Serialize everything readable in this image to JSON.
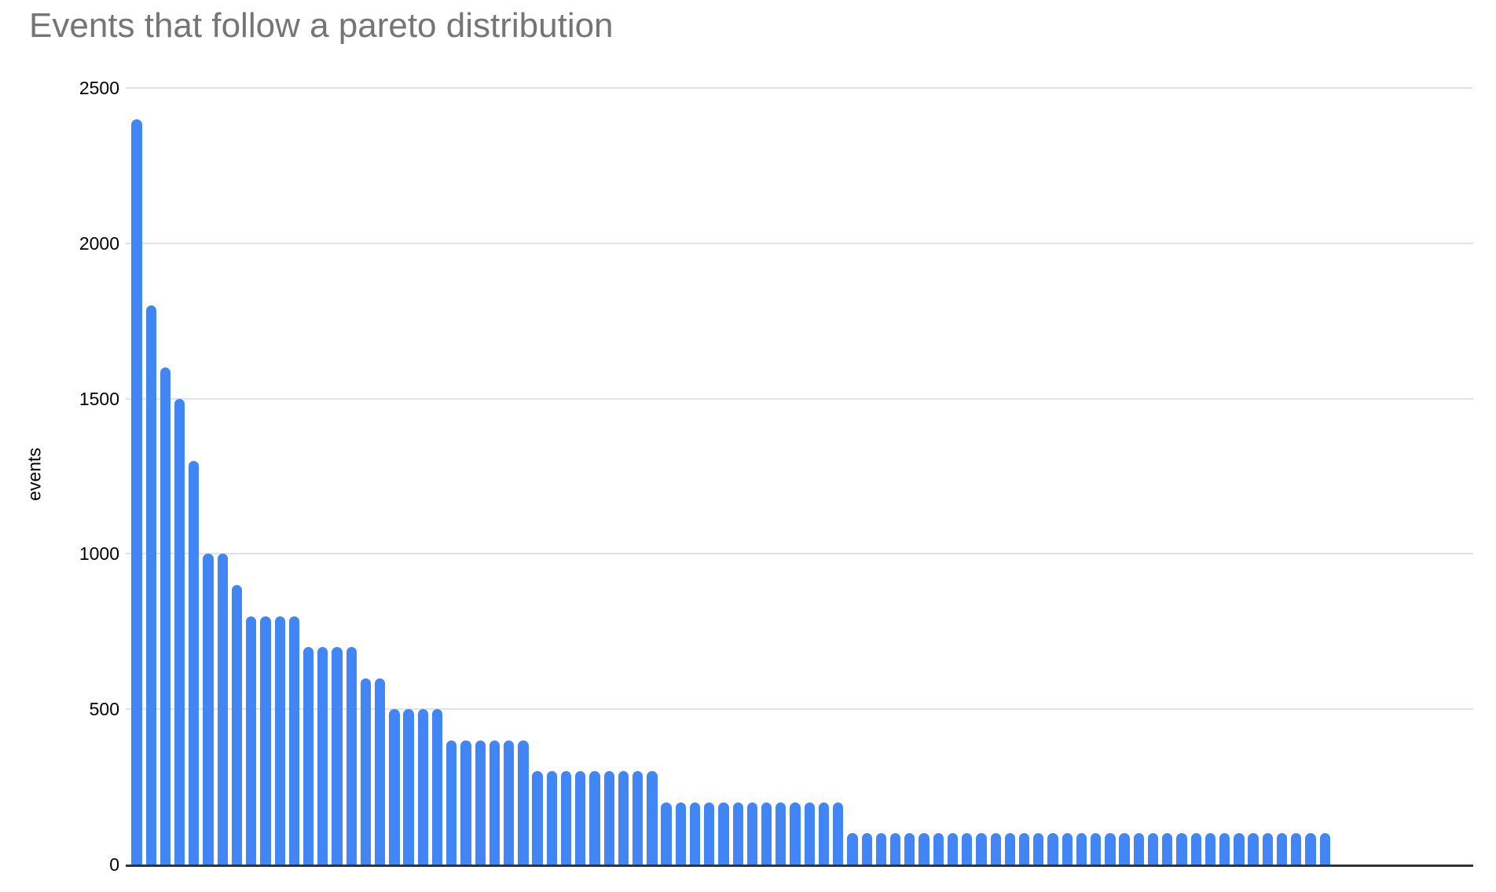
{
  "page": {
    "background": "#ffffff"
  },
  "style": {
    "bar_color": "#4285f4",
    "gridline_color": "#e2e2e2",
    "axis_line_color": "#333333",
    "title_color": "#757575",
    "tick_text_color": "#000000"
  },
  "chart_data": {
    "type": "bar",
    "title": "Events that follow a pareto distribution",
    "xlabel": "",
    "ylabel": "events",
    "ylim": [
      0,
      2500
    ],
    "yticks": [
      0,
      500,
      1000,
      1500,
      2000,
      2500
    ],
    "grid": true,
    "legend": false,
    "x_tick_labels_visible": false,
    "values": [
      2400,
      1800,
      1600,
      1500,
      1300,
      1000,
      1000,
      900,
      800,
      800,
      800,
      800,
      700,
      700,
      700,
      700,
      600,
      600,
      500,
      500,
      500,
      500,
      400,
      400,
      400,
      400,
      400,
      400,
      300,
      300,
      300,
      300,
      300,
      300,
      300,
      300,
      300,
      200,
      200,
      200,
      200,
      200,
      200,
      200,
      200,
      200,
      200,
      200,
      200,
      200,
      100,
      100,
      100,
      100,
      100,
      100,
      100,
      100,
      100,
      100,
      100,
      100,
      100,
      100,
      100,
      100,
      100,
      100,
      100,
      100,
      100,
      100,
      100,
      100,
      100,
      100,
      100,
      100,
      100,
      100,
      100,
      100,
      100,
      100
    ]
  }
}
